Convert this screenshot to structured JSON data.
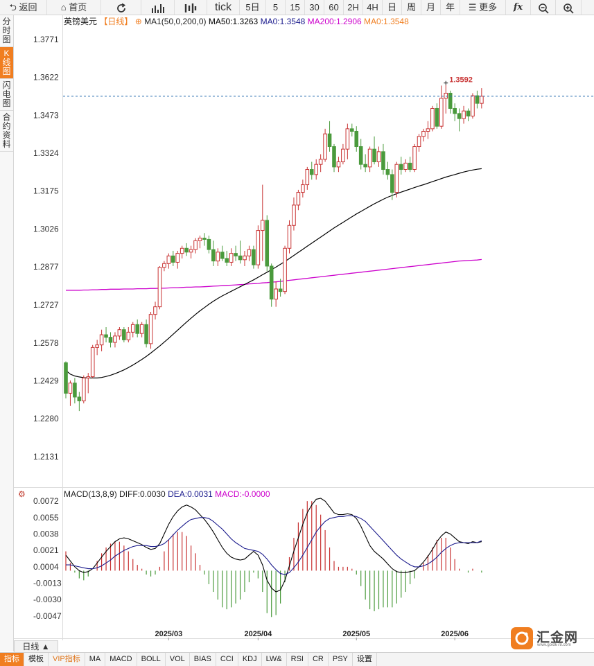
{
  "toolbar": {
    "back": "返回",
    "home": "首页",
    "tick": "tick",
    "periods": [
      "5日",
      "5",
      "15",
      "30",
      "60",
      "2H",
      "4H",
      "日",
      "周",
      "月",
      "年"
    ],
    "more": "更多",
    "fx": "fx"
  },
  "sidetabs": [
    "分时图",
    "K线图",
    "闪电图",
    "合约资料"
  ],
  "legend": {
    "symbol": "英镑美元",
    "period": "【日线】",
    "ma_title": "MA1(50,0,200,0)",
    "ma50": "MA50:1.3263",
    "ma0a": "MA0:1.3548",
    "ma200": "MA200:1.2906",
    "ma0b": "MA0:1.3548"
  },
  "macd_legend": {
    "title": "MACD(13,8,9)",
    "diff": "DIFF:0.0030",
    "dea": "DEA:0.0031",
    "macd": "MACD:-0.0000"
  },
  "high_label": "1.3592",
  "period_button": "日线 ▲",
  "logo_text": "汇金网",
  "logo_sub": "www.gold678.com",
  "bottom_tabs": [
    "指标",
    "模板",
    "VIP指标",
    "MA",
    "MACD",
    "BOLL",
    "VOL",
    "BIAS",
    "CCI",
    "KDJ",
    "LW&",
    "RSI",
    "CR",
    "PSY",
    "设置"
  ],
  "colors": {
    "up": "#c83232",
    "down": "#4a9a3c",
    "ma50": "#000000",
    "ma200": "#cc00cc",
    "dea": "#1a1a8c",
    "accent": "#f07e20",
    "current_line": "#2a6fb0"
  },
  "chart_data": {
    "type": "candlestick",
    "title": "英镑美元【日线】",
    "price_ticks": [
      1.3771,
      1.3622,
      1.3473,
      1.3324,
      1.3175,
      1.3026,
      1.2877,
      1.2727,
      1.2578,
      1.2429,
      1.228,
      1.2131
    ],
    "price_range": [
      1.2035,
      1.3812
    ],
    "current_price": 1.3548,
    "x_labels": [
      {
        "index": 23,
        "label": "2025/03"
      },
      {
        "index": 43,
        "label": "2025/04"
      },
      {
        "index": 65,
        "label": "2025/05"
      },
      {
        "index": 87,
        "label": "2025/06"
      }
    ],
    "candles": [
      {
        "o": 1.25,
        "h": 1.2505,
        "l": 1.236,
        "c": 1.238
      },
      {
        "o": 1.238,
        "h": 1.243,
        "l": 1.233,
        "c": 1.242
      },
      {
        "o": 1.242,
        "h": 1.244,
        "l": 1.234,
        "c": 1.2365
      },
      {
        "o": 1.2365,
        "h": 1.2385,
        "l": 1.231,
        "c": 1.235
      },
      {
        "o": 1.235,
        "h": 1.245,
        "l": 1.234,
        "c": 1.244
      },
      {
        "o": 1.244,
        "h": 1.246,
        "l": 1.238,
        "c": 1.2445
      },
      {
        "o": 1.2445,
        "h": 1.257,
        "l": 1.244,
        "c": 1.256
      },
      {
        "o": 1.256,
        "h": 1.259,
        "l": 1.253,
        "c": 1.257
      },
      {
        "o": 1.257,
        "h": 1.263,
        "l": 1.2545,
        "c": 1.261
      },
      {
        "o": 1.261,
        "h": 1.264,
        "l": 1.258,
        "c": 1.26
      },
      {
        "o": 1.26,
        "h": 1.262,
        "l": 1.256,
        "c": 1.258
      },
      {
        "o": 1.258,
        "h": 1.262,
        "l": 1.256,
        "c": 1.2605
      },
      {
        "o": 1.2605,
        "h": 1.264,
        "l": 1.259,
        "c": 1.263
      },
      {
        "o": 1.263,
        "h": 1.264,
        "l": 1.258,
        "c": 1.259
      },
      {
        "o": 1.259,
        "h": 1.264,
        "l": 1.258,
        "c": 1.262
      },
      {
        "o": 1.262,
        "h": 1.266,
        "l": 1.26,
        "c": 1.265
      },
      {
        "o": 1.265,
        "h": 1.267,
        "l": 1.26,
        "c": 1.2615
      },
      {
        "o": 1.2615,
        "h": 1.266,
        "l": 1.26,
        "c": 1.265
      },
      {
        "o": 1.265,
        "h": 1.267,
        "l": 1.256,
        "c": 1.2575
      },
      {
        "o": 1.2575,
        "h": 1.27,
        "l": 1.2555,
        "c": 1.269
      },
      {
        "o": 1.269,
        "h": 1.274,
        "l": 1.267,
        "c": 1.272
      },
      {
        "o": 1.272,
        "h": 1.288,
        "l": 1.271,
        "c": 1.2875
      },
      {
        "o": 1.2875,
        "h": 1.29,
        "l": 1.286,
        "c": 1.289
      },
      {
        "o": 1.289,
        "h": 1.293,
        "l": 1.287,
        "c": 1.292
      },
      {
        "o": 1.292,
        "h": 1.294,
        "l": 1.288,
        "c": 1.2895
      },
      {
        "o": 1.2895,
        "h": 1.294,
        "l": 1.287,
        "c": 1.293
      },
      {
        "o": 1.293,
        "h": 1.296,
        "l": 1.291,
        "c": 1.295
      },
      {
        "o": 1.295,
        "h": 1.297,
        "l": 1.292,
        "c": 1.2935
      },
      {
        "o": 1.2935,
        "h": 1.296,
        "l": 1.291,
        "c": 1.2945
      },
      {
        "o": 1.2945,
        "h": 1.299,
        "l": 1.293,
        "c": 1.298
      },
      {
        "o": 1.298,
        "h": 1.3,
        "l": 1.295,
        "c": 1.299
      },
      {
        "o": 1.299,
        "h": 1.301,
        "l": 1.296,
        "c": 1.2985
      },
      {
        "o": 1.2985,
        "h": 1.3,
        "l": 1.293,
        "c": 1.2945
      },
      {
        "o": 1.2945,
        "h": 1.298,
        "l": 1.288,
        "c": 1.29
      },
      {
        "o": 1.29,
        "h": 1.295,
        "l": 1.288,
        "c": 1.2935
      },
      {
        "o": 1.2935,
        "h": 1.296,
        "l": 1.29,
        "c": 1.291
      },
      {
        "o": 1.291,
        "h": 1.294,
        "l": 1.288,
        "c": 1.2895
      },
      {
        "o": 1.2895,
        "h": 1.295,
        "l": 1.288,
        "c": 1.293
      },
      {
        "o": 1.293,
        "h": 1.296,
        "l": 1.29,
        "c": 1.292
      },
      {
        "o": 1.292,
        "h": 1.298,
        "l": 1.289,
        "c": 1.2905
      },
      {
        "o": 1.2905,
        "h": 1.294,
        "l": 1.288,
        "c": 1.292
      },
      {
        "o": 1.292,
        "h": 1.296,
        "l": 1.29,
        "c": 1.2945
      },
      {
        "o": 1.2945,
        "h": 1.296,
        "l": 1.287,
        "c": 1.2885
      },
      {
        "o": 1.2885,
        "h": 1.304,
        "l": 1.287,
        "c": 1.302
      },
      {
        "o": 1.302,
        "h": 1.32,
        "l": 1.29,
        "c": 1.306
      },
      {
        "o": 1.306,
        "h": 1.308,
        "l": 1.286,
        "c": 1.288
      },
      {
        "o": 1.288,
        "h": 1.289,
        "l": 1.272,
        "c": 1.275
      },
      {
        "o": 1.275,
        "h": 1.282,
        "l": 1.272,
        "c": 1.279
      },
      {
        "o": 1.279,
        "h": 1.283,
        "l": 1.276,
        "c": 1.278
      },
      {
        "o": 1.278,
        "h": 1.296,
        "l": 1.277,
        "c": 1.295
      },
      {
        "o": 1.295,
        "h": 1.306,
        "l": 1.293,
        "c": 1.304
      },
      {
        "o": 1.304,
        "h": 1.315,
        "l": 1.302,
        "c": 1.312
      },
      {
        "o": 1.312,
        "h": 1.318,
        "l": 1.31,
        "c": 1.317
      },
      {
        "o": 1.317,
        "h": 1.322,
        "l": 1.315,
        "c": 1.32
      },
      {
        "o": 1.32,
        "h": 1.327,
        "l": 1.318,
        "c": 1.326
      },
      {
        "o": 1.326,
        "h": 1.329,
        "l": 1.322,
        "c": 1.324
      },
      {
        "o": 1.324,
        "h": 1.33,
        "l": 1.322,
        "c": 1.328
      },
      {
        "o": 1.328,
        "h": 1.332,
        "l": 1.325,
        "c": 1.33
      },
      {
        "o": 1.33,
        "h": 1.342,
        "l": 1.329,
        "c": 1.34
      },
      {
        "o": 1.34,
        "h": 1.345,
        "l": 1.333,
        "c": 1.335
      },
      {
        "o": 1.335,
        "h": 1.336,
        "l": 1.325,
        "c": 1.327
      },
      {
        "o": 1.327,
        "h": 1.331,
        "l": 1.325,
        "c": 1.329
      },
      {
        "o": 1.329,
        "h": 1.336,
        "l": 1.328,
        "c": 1.334
      },
      {
        "o": 1.334,
        "h": 1.344,
        "l": 1.33,
        "c": 1.342
      },
      {
        "o": 1.342,
        "h": 1.344,
        "l": 1.339,
        "c": 1.341
      },
      {
        "o": 1.341,
        "h": 1.343,
        "l": 1.333,
        "c": 1.335
      },
      {
        "o": 1.335,
        "h": 1.338,
        "l": 1.326,
        "c": 1.328
      },
      {
        "o": 1.328,
        "h": 1.332,
        "l": 1.325,
        "c": 1.327
      },
      {
        "o": 1.327,
        "h": 1.335,
        "l": 1.325,
        "c": 1.334
      },
      {
        "o": 1.334,
        "h": 1.339,
        "l": 1.328,
        "c": 1.329
      },
      {
        "o": 1.329,
        "h": 1.335,
        "l": 1.327,
        "c": 1.333
      },
      {
        "o": 1.333,
        "h": 1.336,
        "l": 1.324,
        "c": 1.326
      },
      {
        "o": 1.326,
        "h": 1.329,
        "l": 1.322,
        "c": 1.324
      },
      {
        "o": 1.324,
        "h": 1.326,
        "l": 1.314,
        "c": 1.317
      },
      {
        "o": 1.317,
        "h": 1.329,
        "l": 1.315,
        "c": 1.328
      },
      {
        "o": 1.328,
        "h": 1.331,
        "l": 1.324,
        "c": 1.326
      },
      {
        "o": 1.326,
        "h": 1.33,
        "l": 1.325,
        "c": 1.3285
      },
      {
        "o": 1.3285,
        "h": 1.331,
        "l": 1.325,
        "c": 1.326
      },
      {
        "o": 1.326,
        "h": 1.336,
        "l": 1.325,
        "c": 1.335
      },
      {
        "o": 1.335,
        "h": 1.34,
        "l": 1.333,
        "c": 1.339
      },
      {
        "o": 1.339,
        "h": 1.342,
        "l": 1.337,
        "c": 1.341
      },
      {
        "o": 1.341,
        "h": 1.345,
        "l": 1.338,
        "c": 1.342
      },
      {
        "o": 1.342,
        "h": 1.351,
        "l": 1.341,
        "c": 1.35
      },
      {
        "o": 1.35,
        "h": 1.352,
        "l": 1.342,
        "c": 1.343
      },
      {
        "o": 1.343,
        "h": 1.359,
        "l": 1.342,
        "c": 1.354
      },
      {
        "o": 1.354,
        "h": 1.3592,
        "l": 1.348,
        "c": 1.356
      },
      {
        "o": 1.356,
        "h": 1.357,
        "l": 1.348,
        "c": 1.35
      },
      {
        "o": 1.35,
        "h": 1.352,
        "l": 1.345,
        "c": 1.348
      },
      {
        "o": 1.348,
        "h": 1.35,
        "l": 1.341,
        "c": 1.346
      },
      {
        "o": 1.346,
        "h": 1.351,
        "l": 1.344,
        "c": 1.349
      },
      {
        "o": 1.349,
        "h": 1.35,
        "l": 1.345,
        "c": 1.347
      },
      {
        "o": 1.347,
        "h": 1.356,
        "l": 1.346,
        "c": 1.355
      },
      {
        "o": 1.355,
        "h": 1.357,
        "l": 1.35,
        "c": 1.352
      },
      {
        "o": 1.352,
        "h": 1.358,
        "l": 1.35,
        "c": 1.3548
      }
    ],
    "ma50": [
      1.247,
      1.2455,
      1.2448,
      1.2444,
      1.2441,
      1.244,
      1.244,
      1.244,
      1.2442,
      1.2446,
      1.2451,
      1.2457,
      1.2464,
      1.2472,
      1.2481,
      1.2491,
      1.2502,
      1.2513,
      1.2525,
      1.2538,
      1.2552,
      1.2566,
      1.2581,
      1.2596,
      1.2612,
      1.2628,
      1.2644,
      1.266,
      1.2675,
      1.269,
      1.2704,
      1.2717,
      1.273,
      1.2742,
      1.2753,
      1.2763,
      1.2772,
      1.2781,
      1.279,
      1.2799,
      1.2808,
      1.2817,
      1.2826,
      1.2836,
      1.2846,
      1.2856,
      1.2866,
      1.2876,
      1.2887,
      1.2898,
      1.291,
      1.2922,
      1.2934,
      1.2946,
      1.2958,
      1.297,
      1.2982,
      1.2994,
      1.3006,
      1.3018,
      1.303,
      1.3041,
      1.3052,
      1.3063,
      1.3074,
      1.3085,
      1.3095,
      1.3105,
      1.3115,
      1.3125,
      1.3134,
      1.3143,
      1.3151,
      1.3158,
      1.3165,
      1.3171,
      1.3177,
      1.3183,
      1.3189,
      1.3195,
      1.32,
      1.3206,
      1.3212,
      1.3218,
      1.3224,
      1.323,
      1.3235,
      1.324,
      1.3245,
      1.325,
      1.3254,
      1.3258,
      1.3261,
      1.3263
    ],
    "ma200": [
      1.2785,
      1.2785,
      1.2785,
      1.2785,
      1.2786,
      1.2786,
      1.2787,
      1.2787,
      1.2788,
      1.2788,
      1.2789,
      1.2789,
      1.2789,
      1.279,
      1.279,
      1.279,
      1.2791,
      1.2791,
      1.2791,
      1.2792,
      1.2792,
      1.2793,
      1.2793,
      1.2794,
      1.2795,
      1.2795,
      1.2796,
      1.2797,
      1.2797,
      1.2798,
      1.2798,
      1.2799,
      1.28,
      1.2801,
      1.2802,
      1.2803,
      1.2804,
      1.2805,
      1.2806,
      1.2807,
      1.2808,
      1.281,
      1.2811,
      1.2812,
      1.2814,
      1.2815,
      1.2817,
      1.2818,
      1.282,
      1.2822,
      1.2824,
      1.2826,
      1.2828,
      1.283,
      1.2832,
      1.2834,
      1.2836,
      1.2838,
      1.284,
      1.2842,
      1.2844,
      1.2846,
      1.2848,
      1.285,
      1.2852,
      1.2854,
      1.2856,
      1.2858,
      1.286,
      1.2862,
      1.2864,
      1.2866,
      1.2868,
      1.287,
      1.2872,
      1.2874,
      1.2876,
      1.2878,
      1.288,
      1.2882,
      1.2884,
      1.2886,
      1.2888,
      1.289,
      1.2892,
      1.2894,
      1.2896,
      1.2898,
      1.29,
      1.2901,
      1.2902,
      1.2903,
      1.2904,
      1.2906
    ],
    "macd": {
      "ticks": [
        0.0072,
        0.0055,
        0.0038,
        0.0021,
        0.0004,
        -0.0013,
        -0.003,
        -0.0047
      ],
      "range": [
        -0.006,
        0.008
      ],
      "diff": [
        0.0016,
        0.001,
        0.0004,
        0.0,
        -0.0002,
        -0.0001,
        0.0002,
        0.0008,
        0.0014,
        0.002,
        0.0025,
        0.003,
        0.0033,
        0.0034,
        0.0033,
        0.0031,
        0.0029,
        0.0027,
        0.0024,
        0.0022,
        0.0023,
        0.0028,
        0.0038,
        0.0048,
        0.0056,
        0.0062,
        0.0066,
        0.0068,
        0.0066,
        0.0063,
        0.0058,
        0.0053,
        0.0047,
        0.004,
        0.0032,
        0.0024,
        0.0018,
        0.0014,
        0.0012,
        0.0011,
        0.0012,
        0.0016,
        0.002,
        0.0016,
        0.0006,
        -0.001,
        -0.0018,
        -0.0022,
        -0.002,
        -0.001,
        0.0005,
        0.002,
        0.0034,
        0.0048,
        0.006,
        0.0068,
        0.0074,
        0.0075,
        0.0072,
        0.0066,
        0.006,
        0.0058,
        0.0058,
        0.0059,
        0.0058,
        0.0054,
        0.0046,
        0.0036,
        0.0026,
        0.002,
        0.0016,
        0.0012,
        0.0007,
        0.0002,
        -0.0001,
        -0.0002,
        -0.0002,
        -0.0001,
        0.0,
        0.0004,
        0.0009,
        0.0015,
        0.0022,
        0.003,
        0.0036,
        0.004,
        0.0038,
        0.0034,
        0.003,
        0.0029,
        0.0028,
        0.003,
        0.0029,
        0.003
      ],
      "dea": [
        0.0006,
        0.0006,
        0.0005,
        0.0004,
        0.0003,
        0.0002,
        0.0002,
        0.0003,
        0.0005,
        0.0008,
        0.0011,
        0.0015,
        0.0018,
        0.0021,
        0.0023,
        0.0025,
        0.0026,
        0.0026,
        0.0026,
        0.0025,
        0.0025,
        0.0026,
        0.0028,
        0.0032,
        0.0037,
        0.0042,
        0.0046,
        0.005,
        0.0053,
        0.0054,
        0.0055,
        0.0055,
        0.0054,
        0.0051,
        0.0047,
        0.0043,
        0.0038,
        0.0033,
        0.0029,
        0.0026,
        0.0023,
        0.0022,
        0.0021,
        0.002,
        0.0017,
        0.0012,
        0.0006,
        0.0001,
        -0.0003,
        -0.0004,
        -0.0002,
        0.0003,
        0.0009,
        0.0016,
        0.0024,
        0.0032,
        0.004,
        0.0046,
        0.0051,
        0.0054,
        0.0055,
        0.0056,
        0.0056,
        0.0057,
        0.0057,
        0.0056,
        0.0054,
        0.0051,
        0.0046,
        0.0041,
        0.0036,
        0.0031,
        0.0026,
        0.0021,
        0.0016,
        0.0012,
        0.0009,
        0.0006,
        0.0004,
        0.0004,
        0.0005,
        0.0007,
        0.001,
        0.0014,
        0.0019,
        0.0023,
        0.0026,
        0.0028,
        0.0029,
        0.0029,
        0.0029,
        0.0029,
        0.0029,
        0.0031
      ]
    }
  }
}
